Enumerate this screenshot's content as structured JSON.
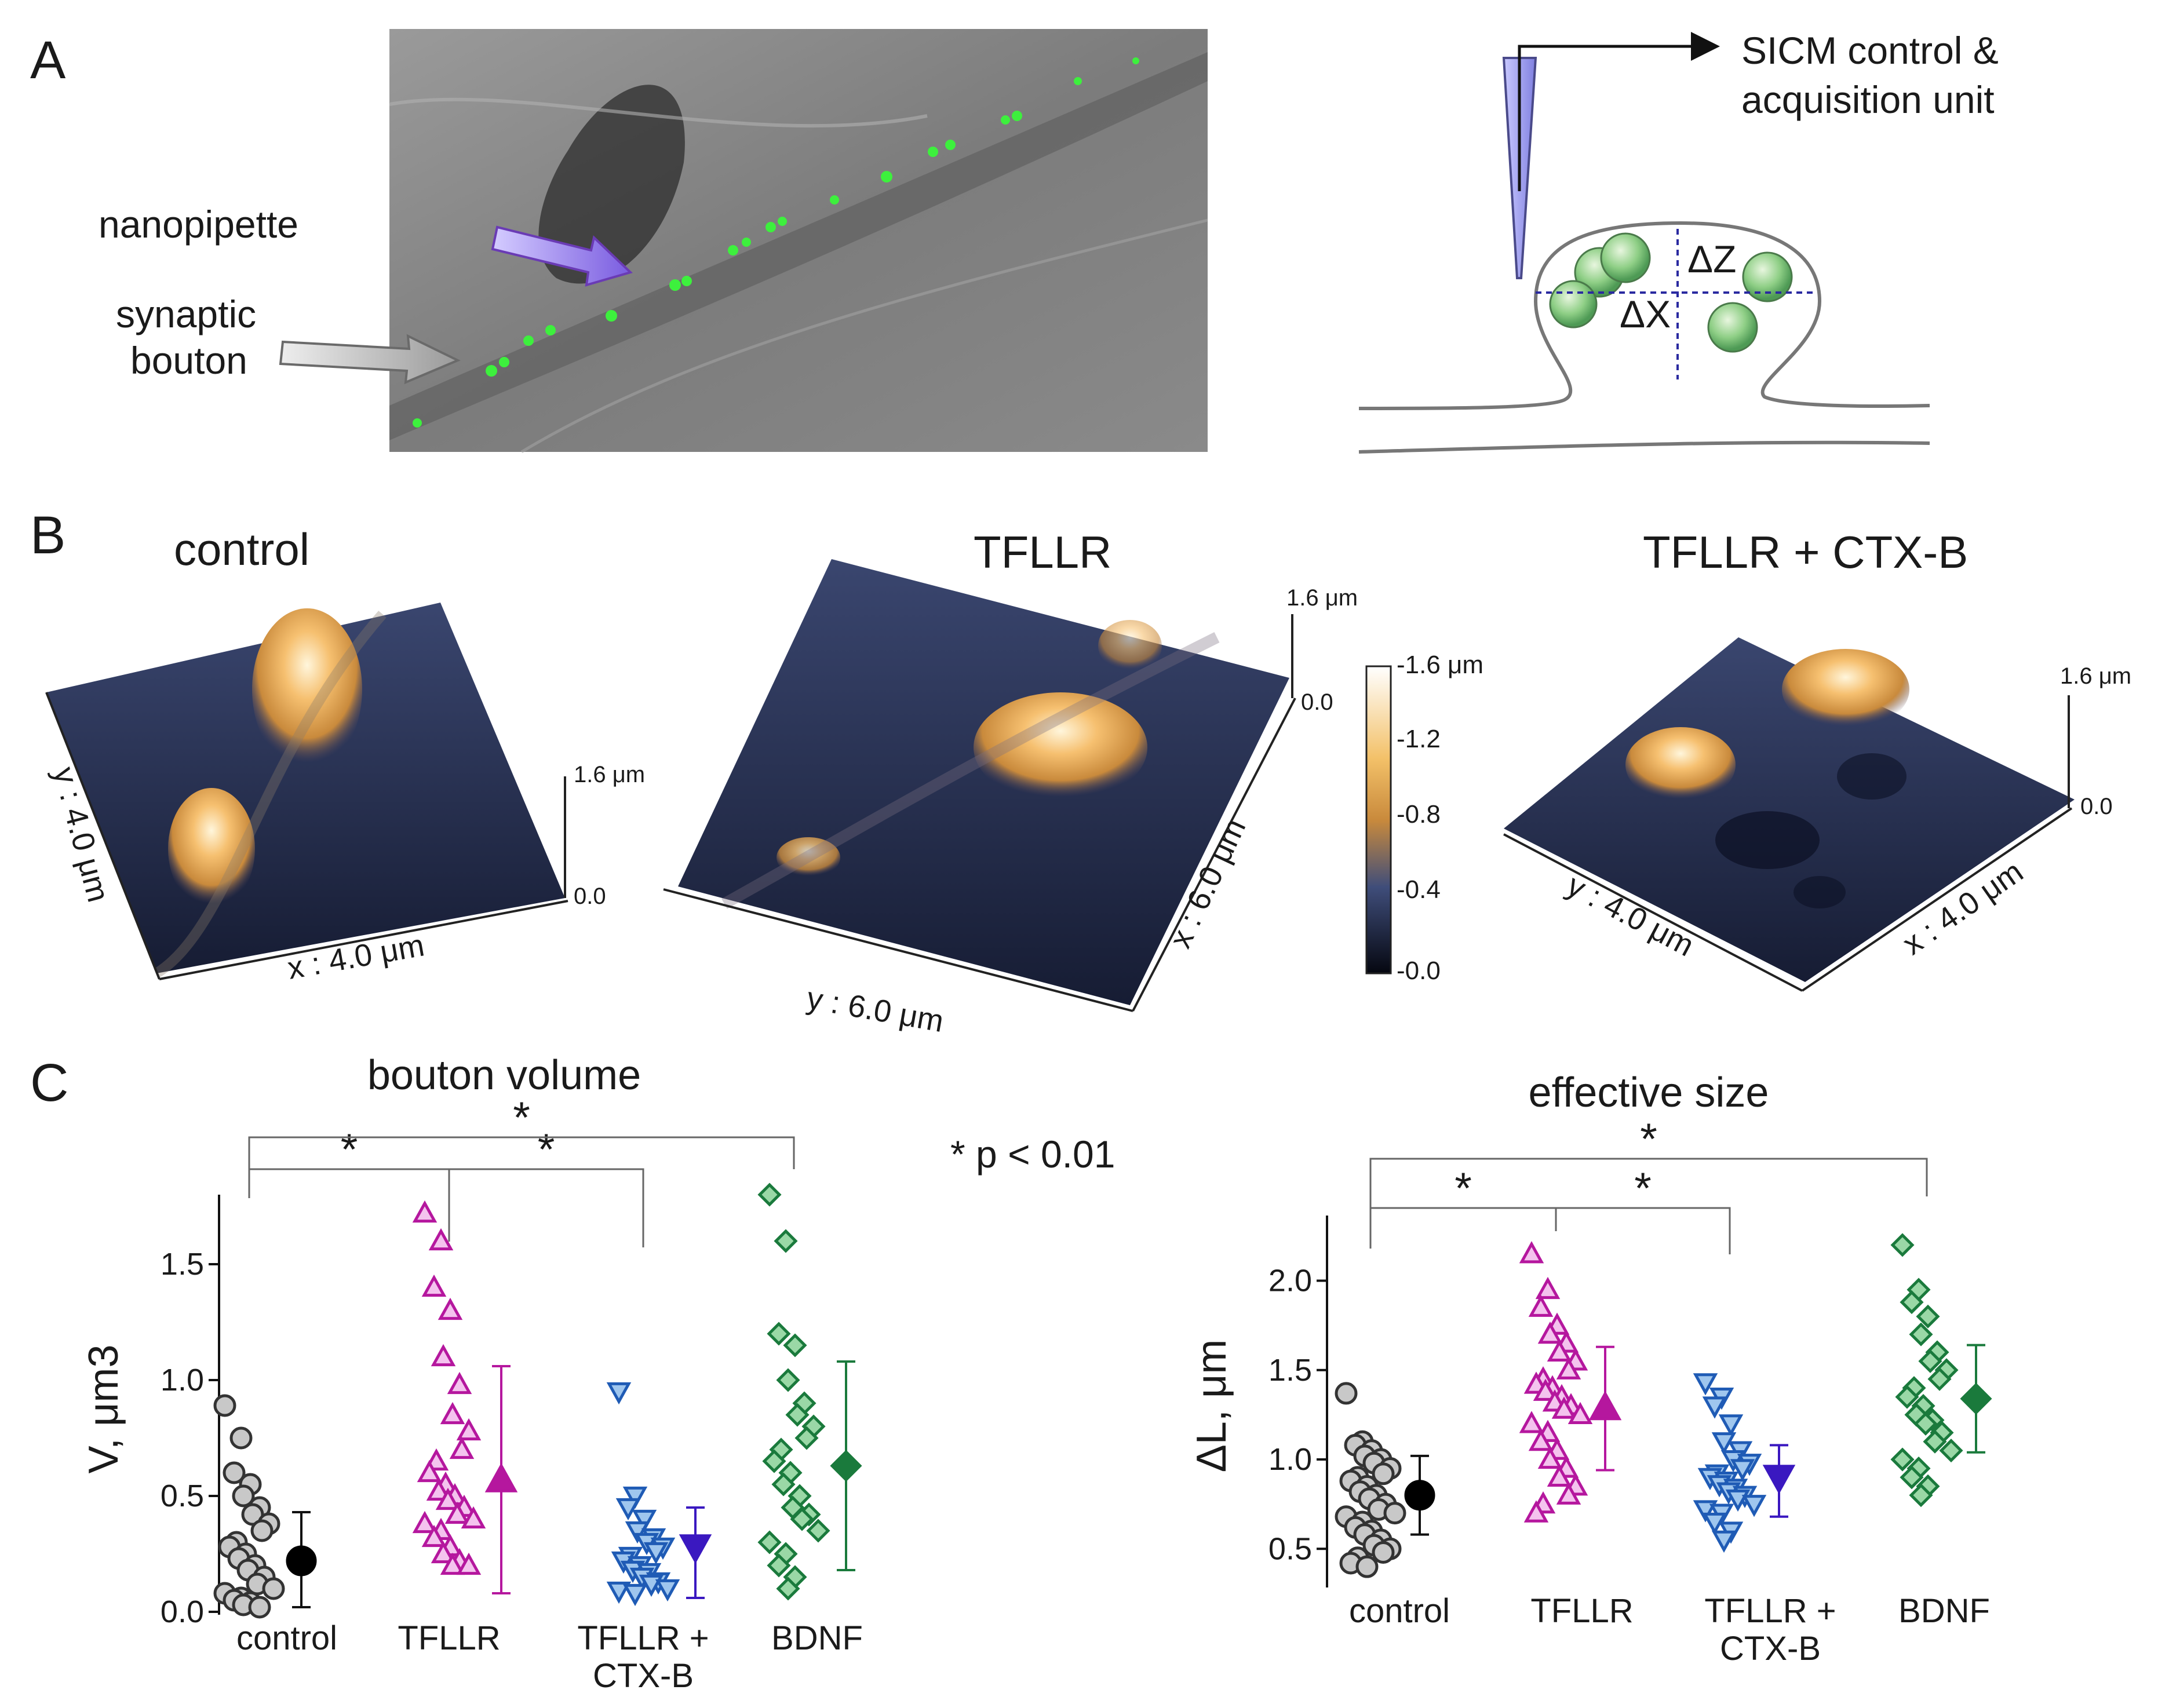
{
  "panelA": {
    "label": "A",
    "pipette_label": "nanopipette",
    "bouton_label_line1": "synaptic",
    "bouton_label_line2": "bouton",
    "unit_line1": "SICM control &",
    "unit_line2": "acquisition unit",
    "dz_label": "ΔZ",
    "dx_label": "ΔX"
  },
  "panelB": {
    "label": "B",
    "titles": [
      "control",
      "TFLLR",
      "TFLLR + CTX-B"
    ],
    "control_y": "y : 4.0 μm",
    "control_x": "x : 4.0 μm",
    "tfllr_y": "y : 6.0 μm",
    "tfllr_x": "x : 6.0 μm",
    "ctx_y": "y : 4.0 μm",
    "ctx_x": "x : 4.0 μm",
    "zbar_top": "1.6 μm",
    "zbar_bottom": "0.0",
    "colorbar_ticks": [
      "-1.6 μm",
      "-1.2",
      "-0.8",
      "-0.4",
      "-0.0"
    ],
    "colors": {
      "dark": "#0a0e1f",
      "mid": "#33406e",
      "warm": "#e8a040",
      "bright": "#ffffff"
    }
  },
  "panelC": {
    "label": "C",
    "significance_note": "* p < 0.01",
    "star": "*",
    "categories": [
      "control",
      "TFLLR",
      "TFLLR +",
      "BDNF"
    ],
    "category_line2": "CTX-B",
    "colors": {
      "control": "#888888",
      "tfllr": "#b5179e",
      "ctx": "#1f5bb5",
      "bdnf": "#1a7a3c"
    }
  },
  "chart_data": [
    {
      "type": "scatter",
      "title": "bouton volume",
      "ylabel": "V, μm3",
      "ylim": [
        0,
        1.75
      ],
      "yticks": [
        "0.0",
        "0.5",
        "1.0",
        "1.5"
      ],
      "categories": [
        "control",
        "TFLLR",
        "TFLLR + CTX-B",
        "BDNF"
      ],
      "series": [
        {
          "name": "control",
          "marker": "circle",
          "values": [
            0.89,
            0.75,
            0.6,
            0.55,
            0.5,
            0.45,
            0.42,
            0.38,
            0.35,
            0.3,
            0.28,
            0.25,
            0.23,
            0.2,
            0.18,
            0.15,
            0.12,
            0.1,
            0.08,
            0.06,
            0.05,
            0.04,
            0.03,
            0.02
          ],
          "mean": 0.22,
          "err_low": 0.02,
          "err_high": 0.43
        },
        {
          "name": "TFLLR",
          "marker": "triangle-up",
          "values": [
            1.72,
            1.6,
            1.4,
            1.3,
            1.1,
            0.98,
            0.85,
            0.78,
            0.7,
            0.65,
            0.6,
            0.55,
            0.52,
            0.5,
            0.48,
            0.45,
            0.42,
            0.4,
            0.38,
            0.35,
            0.32,
            0.28,
            0.25,
            0.22,
            0.2,
            0.2
          ],
          "mean": 0.57,
          "err_low": 0.08,
          "err_high": 1.06
        },
        {
          "name": "TFLLR + CTX-B",
          "marker": "triangle-down",
          "values": [
            0.95,
            0.5,
            0.45,
            0.4,
            0.35,
            0.32,
            0.3,
            0.28,
            0.26,
            0.24,
            0.22,
            0.2,
            0.18,
            0.17,
            0.15,
            0.13,
            0.12,
            0.1,
            0.09,
            0.08
          ],
          "mean": 0.28,
          "err_low": 0.06,
          "err_high": 0.45
        },
        {
          "name": "BDNF",
          "marker": "diamond",
          "values": [
            1.8,
            1.6,
            1.2,
            1.15,
            1.0,
            0.9,
            0.85,
            0.8,
            0.75,
            0.7,
            0.65,
            0.6,
            0.55,
            0.5,
            0.45,
            0.42,
            0.4,
            0.35,
            0.3,
            0.25,
            0.2,
            0.15,
            0.1
          ],
          "mean": 0.63,
          "err_low": 0.18,
          "err_high": 1.08
        }
      ],
      "significance": [
        [
          "control",
          "TFLLR"
        ],
        [
          "TFLLR",
          "TFLLR + CTX-B"
        ],
        [
          "control",
          "BDNF"
        ]
      ]
    },
    {
      "type": "scatter",
      "title": "effective size",
      "ylabel": "ΔL, μm",
      "ylim": [
        0.3,
        2.3
      ],
      "yticks": [
        "0.5",
        "1.0",
        "1.5",
        "2.0"
      ],
      "categories": [
        "control",
        "TFLLR",
        "TFLLR + CTX-B",
        "BDNF"
      ],
      "series": [
        {
          "name": "control",
          "marker": "circle",
          "values": [
            1.37,
            1.1,
            1.08,
            1.05,
            1.02,
            1.0,
            0.98,
            0.95,
            0.92,
            0.9,
            0.88,
            0.85,
            0.82,
            0.8,
            0.78,
            0.75,
            0.72,
            0.7,
            0.68,
            0.65,
            0.62,
            0.6,
            0.58,
            0.55,
            0.52,
            0.5,
            0.48,
            0.45,
            0.42,
            0.4
          ],
          "mean": 0.8,
          "err_low": 0.58,
          "err_high": 1.02
        },
        {
          "name": "TFLLR",
          "marker": "triangle-up",
          "values": [
            2.15,
            1.95,
            1.85,
            1.75,
            1.7,
            1.65,
            1.6,
            1.55,
            1.5,
            1.45,
            1.42,
            1.4,
            1.38,
            1.35,
            1.32,
            1.3,
            1.28,
            1.25,
            1.2,
            1.15,
            1.1,
            1.05,
            1.0,
            0.95,
            0.9,
            0.85,
            0.8,
            0.75,
            0.7
          ],
          "mean": 1.29,
          "err_low": 0.94,
          "err_high": 1.63
        },
        {
          "name": "TFLLR + CTX-B",
          "marker": "triangle-down",
          "values": [
            1.43,
            1.35,
            1.3,
            1.2,
            1.1,
            1.05,
            1.0,
            0.98,
            0.95,
            0.92,
            0.9,
            0.88,
            0.86,
            0.84,
            0.82,
            0.8,
            0.78,
            0.75,
            0.72,
            0.7,
            0.65,
            0.6,
            0.55
          ],
          "mean": 0.9,
          "err_low": 0.68,
          "err_high": 1.08
        },
        {
          "name": "BDNF",
          "marker": "diamond",
          "values": [
            2.2,
            1.95,
            1.88,
            1.8,
            1.7,
            1.6,
            1.55,
            1.5,
            1.45,
            1.4,
            1.35,
            1.3,
            1.25,
            1.22,
            1.2,
            1.15,
            1.1,
            1.05,
            1.0,
            0.95,
            0.9,
            0.85,
            0.8
          ],
          "mean": 1.34,
          "err_low": 1.04,
          "err_high": 1.64
        }
      ],
      "significance": [
        [
          "control",
          "TFLLR"
        ],
        [
          "TFLLR",
          "TFLLR + CTX-B"
        ],
        [
          "control",
          "BDNF"
        ]
      ]
    }
  ]
}
